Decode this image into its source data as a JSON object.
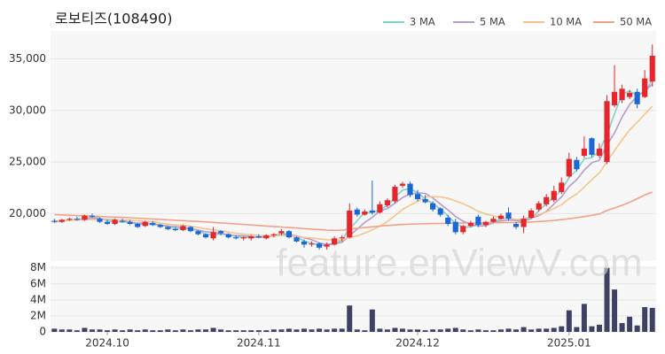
{
  "chart_data": {
    "type": "candlestick",
    "title": "로보티즈(108490)",
    "watermark": "feature.enViewV.com",
    "categories": [
      null,
      null,
      null,
      null,
      null,
      null,
      null,
      "2024.10",
      null,
      null,
      null,
      null,
      null,
      null,
      null,
      null,
      null,
      null,
      null,
      null,
      null,
      null,
      null,
      null,
      null,
      null,
      null,
      "2024.11",
      null,
      null,
      null,
      null,
      null,
      null,
      null,
      null,
      null,
      null,
      null,
      null,
      null,
      null,
      null,
      null,
      null,
      null,
      null,
      null,
      "2024.12",
      null,
      null,
      null,
      null,
      null,
      null,
      null,
      null,
      null,
      null,
      null,
      null,
      null,
      null,
      null,
      null,
      null,
      null,
      null,
      "2025.01",
      null,
      null,
      null,
      null,
      null,
      null,
      null,
      null,
      null,
      null,
      null
    ],
    "open": [
      19300,
      19200,
      19400,
      19500,
      19400,
      19800,
      19500,
      19200,
      19000,
      19300,
      19200,
      19000,
      18800,
      19100,
      18900,
      18700,
      18500,
      18400,
      18700,
      18300,
      18000,
      17600,
      18300,
      18000,
      17700,
      17600,
      17600,
      17800,
      17600,
      17900,
      18100,
      18300,
      17700,
      17300,
      17000,
      17100,
      16800,
      17000,
      17600,
      17700,
      20400,
      19900,
      20300,
      20100,
      20800,
      21200,
      22700,
      22900,
      21900,
      21400,
      21000,
      20500,
      19600,
      19200,
      18200,
      18800,
      19700,
      18900,
      19200,
      19500,
      20100,
      19000,
      18700,
      19600,
      20400,
      20900,
      21300,
      22100,
      23600,
      25200,
      25600,
      27300,
      25600,
      25000,
      30500,
      31000,
      31300,
      31800,
      31300,
      32800
    ],
    "high": [
      19500,
      19500,
      19600,
      19700,
      19900,
      20000,
      19600,
      19400,
      19500,
      19500,
      19400,
      19100,
      19300,
      19300,
      19000,
      18800,
      18700,
      18900,
      18800,
      18400,
      18100,
      18700,
      18400,
      18100,
      17900,
      17800,
      17900,
      18000,
      18000,
      18100,
      18500,
      18400,
      17800,
      17500,
      17300,
      17200,
      17200,
      17800,
      17900,
      21000,
      20600,
      20400,
      23200,
      21200,
      21500,
      22800,
      23100,
      23100,
      22300,
      21800,
      21200,
      20600,
      19900,
      19500,
      18900,
      19300,
      19900,
      19300,
      19700,
      20000,
      20600,
      19200,
      19800,
      20500,
      21200,
      21900,
      22700,
      23500,
      25900,
      25500,
      27500,
      27400,
      26800,
      31500,
      34400,
      32500,
      32000,
      32100,
      33900,
      36400
    ],
    "low": [
      19100,
      19100,
      19300,
      19300,
      19300,
      19600,
      19100,
      18900,
      18900,
      19100,
      18900,
      18600,
      18700,
      18800,
      18600,
      18400,
      18300,
      18300,
      18200,
      17900,
      17600,
      17400,
      17900,
      17600,
      17500,
      17400,
      17400,
      17600,
      17500,
      17700,
      17900,
      17600,
      17200,
      16700,
      16800,
      16500,
      16500,
      16900,
      17300,
      17600,
      19700,
      19800,
      19900,
      20000,
      20600,
      21000,
      22500,
      21600,
      21200,
      21000,
      20200,
      19700,
      18800,
      18000,
      18000,
      18700,
      18700,
      18700,
      19100,
      19400,
      19300,
      18500,
      18100,
      19500,
      20200,
      20700,
      21100,
      21900,
      23500,
      24100,
      25400,
      25500,
      25400,
      24800,
      30300,
      30700,
      31100,
      30200,
      31200,
      32300
    ],
    "close": [
      19200,
      19400,
      19500,
      19400,
      19800,
      19700,
      19200,
      19000,
      19400,
      19200,
      19000,
      18700,
      19200,
      18900,
      18700,
      18500,
      18400,
      18800,
      18300,
      18000,
      17700,
      18200,
      18100,
      17700,
      17600,
      17700,
      17800,
      17700,
      17900,
      18000,
      18300,
      17700,
      17300,
      17000,
      17100,
      16700,
      17000,
      17600,
      17700,
      20300,
      19900,
      20200,
      20100,
      20900,
      21300,
      22600,
      22900,
      21800,
      21400,
      21100,
      20400,
      19900,
      19000,
      18200,
      18800,
      19100,
      18900,
      19200,
      19500,
      19800,
      19500,
      18700,
      19500,
      20300,
      21000,
      21600,
      22200,
      23000,
      25300,
      24300,
      26300,
      25700,
      26300,
      30900,
      31800,
      32100,
      31700,
      30600,
      33100,
      35300
    ],
    "up_color": "#e8242c",
    "down_color": "#1a68d8",
    "ylim": [
      15400,
      37700
    ],
    "yticks": [
      {
        "value": 20000,
        "label": "20,000"
      },
      {
        "value": 25000,
        "label": "25,000"
      },
      {
        "value": 30000,
        "label": "30,000"
      },
      {
        "value": 35000,
        "label": "35,000"
      }
    ],
    "grid": true,
    "legend": "top-right",
    "series": [
      {
        "name": "3 MA",
        "color": "#7fd3c8",
        "values": [
          19200,
          19300,
          19370,
          19430,
          19570,
          19630,
          19570,
          19300,
          19200,
          19200,
          19200,
          18970,
          18970,
          18930,
          18930,
          18700,
          18530,
          18570,
          18500,
          18370,
          18000,
          17970,
          18000,
          18000,
          17800,
          17670,
          17700,
          17730,
          17800,
          17870,
          18070,
          18000,
          17770,
          17330,
          17130,
          16930,
          16930,
          17100,
          17430,
          18530,
          19300,
          20130,
          20070,
          20400,
          20770,
          21600,
          22270,
          22430,
          22030,
          21430,
          20970,
          20470,
          19770,
          19030,
          18670,
          18700,
          18930,
          19070,
          19200,
          19500,
          19600,
          19330,
          19230,
          19500,
          20270,
          20970,
          21600,
          22270,
          23500,
          24200,
          25300,
          25430,
          26100,
          27630,
          29670,
          31600,
          31870,
          31470,
          31800,
          33000
        ]
      },
      {
        "name": "5 MA",
        "color": "#b59ccd",
        "values": [
          19200,
          19300,
          19370,
          19380,
          19460,
          19560,
          19520,
          19420,
          19420,
          19300,
          19160,
          19060,
          19100,
          19000,
          18900,
          18800,
          18740,
          18660,
          18540,
          18400,
          18240,
          18200,
          18060,
          17940,
          17860,
          17860,
          17780,
          17700,
          17740,
          17820,
          17940,
          17920,
          17840,
          17660,
          17480,
          17160,
          17020,
          17080,
          17220,
          17860,
          18500,
          19140,
          19640,
          20280,
          20480,
          21020,
          21560,
          21900,
          22000,
          21960,
          21520,
          20920,
          20360,
          19720,
          19260,
          19000,
          18800,
          18840,
          19100,
          19300,
          19380,
          19340,
          19400,
          19560,
          19800,
          20220,
          20920,
          21620,
          22620,
          23280,
          24220,
          24920,
          25180,
          26640,
          27800,
          29360,
          30560,
          31420,
          31860,
          32560
        ]
      },
      {
        "name": "10 MA",
        "color": "#f5c48d",
        "values": [
          19300,
          19320,
          19350,
          19380,
          19410,
          19430,
          19420,
          19390,
          19380,
          19380,
          19360,
          19290,
          19260,
          19210,
          19100,
          18980,
          18900,
          18880,
          18770,
          18650,
          18520,
          18430,
          18330,
          18210,
          18100,
          18020,
          17960,
          17880,
          17840,
          17840,
          17900,
          17850,
          17770,
          17700,
          17650,
          17550,
          17470,
          17460,
          17450,
          17680,
          17840,
          18130,
          18410,
          18800,
          19220,
          19810,
          20400,
          20820,
          21190,
          21630,
          21640,
          21610,
          21490,
          21220,
          20970,
          20620,
          20220,
          19960,
          19770,
          19640,
          19550,
          19430,
          19480,
          19690,
          19910,
          20160,
          20490,
          20870,
          21450,
          21900,
          22580,
          23280,
          23960,
          25020,
          26100,
          27150,
          28100,
          28860,
          29640,
          30410
        ]
      },
      {
        "name": "50 MA",
        "color": "#f4a088",
        "values": [
          19900,
          19870,
          19840,
          19810,
          19780,
          19750,
          19720,
          19690,
          19660,
          19630,
          19600,
          19560,
          19520,
          19480,
          19440,
          19400,
          19360,
          19320,
          19280,
          19240,
          19200,
          19150,
          19100,
          19050,
          19000,
          18950,
          18900,
          18850,
          18800,
          18750,
          18700,
          18650,
          18600,
          18550,
          18500,
          18450,
          18400,
          18380,
          18400,
          18500,
          18580,
          18650,
          18720,
          18790,
          18850,
          18900,
          18940,
          18980,
          19000,
          19020,
          19040,
          19050,
          19060,
          19070,
          19080,
          19090,
          19100,
          19100,
          19110,
          19120,
          19130,
          19140,
          19160,
          19190,
          19230,
          19280,
          19340,
          19410,
          19500,
          19600,
          19710,
          19830,
          19960,
          20300,
          20550,
          20800,
          21100,
          21450,
          21800,
          22100
        ]
      }
    ],
    "volume": {
      "color": "#3f4164",
      "values": [
        400000,
        300000,
        300000,
        200000,
        500000,
        300000,
        300000,
        200000,
        300000,
        200000,
        300000,
        200000,
        300000,
        200000,
        200000,
        300000,
        200000,
        300000,
        200000,
        300000,
        300000,
        500000,
        300000,
        200000,
        200000,
        200000,
        200000,
        200000,
        200000,
        300000,
        300000,
        400000,
        300000,
        400000,
        300000,
        400000,
        300000,
        400000,
        400000,
        3300000,
        300000,
        200000,
        2800000,
        400000,
        300000,
        500000,
        400000,
        300000,
        300000,
        200000,
        300000,
        300000,
        400000,
        500000,
        300000,
        200000,
        300000,
        200000,
        200000,
        300000,
        400000,
        300000,
        600000,
        300000,
        400000,
        400000,
        500000,
        700000,
        2700000,
        600000,
        3500000,
        700000,
        900000,
        8000000,
        5300000,
        1100000,
        1900000,
        800000,
        3100000,
        3000000
      ],
      "ylim": [
        0,
        8300000
      ],
      "yticks": [
        0,
        {
          "value": 2000000,
          "label": "2M"
        },
        {
          "value": 4000000,
          "label": "4M"
        },
        {
          "value": 6000000,
          "label": "6M"
        },
        {
          "value": 8000000,
          "label": "8M"
        }
      ]
    }
  }
}
